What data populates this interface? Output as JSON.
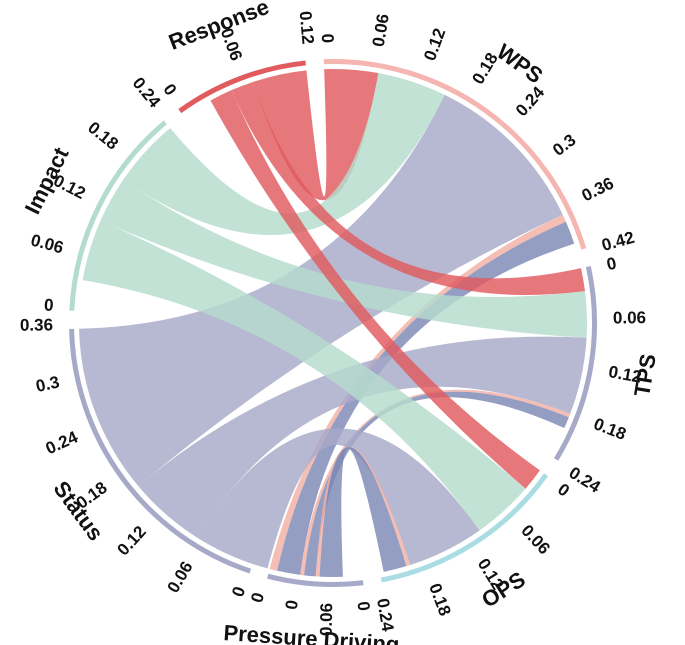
{
  "chart_data": {
    "type": "chord",
    "title": "",
    "colors": {
      "red": "#e05a5e",
      "green": "#b4dccd",
      "purple": "#a7a9c9",
      "salmon": "#f2b0a5",
      "navy": "#7c87b5",
      "track_pink": "#f5b5b0",
      "track_purple": "#a7a9c9",
      "track_cyan": "#a9dde3",
      "track_green": "#b4dccd",
      "track_red": "#e05a5e"
    },
    "sectors": [
      {
        "name": "WPS",
        "total": 0.43,
        "track": "track_pink",
        "ticks": [
          "0",
          "0.06",
          "0.12",
          "0.18",
          "0.24",
          "0.3",
          "0.36",
          "0.42"
        ]
      },
      {
        "name": "TPS",
        "total": 0.25,
        "track": "track_purple",
        "ticks": [
          "0",
          "0.06",
          "0.12",
          "0.18",
          "0.24"
        ]
      },
      {
        "name": "OPS",
        "total": 0.25,
        "track": "track_cyan",
        "ticks": [
          "0",
          "0.06",
          "0.12",
          "0.18",
          "0.24"
        ]
      },
      {
        "name": "Pressure Driving",
        "total": 0.12,
        "track": "track_purple",
        "ticks": [
          "0",
          "0.06",
          "0",
          "0"
        ]
      },
      {
        "name": "Status",
        "total": 0.4,
        "track": "track_purple",
        "ticks": [
          "0",
          "0.06",
          "0.12",
          "0.18",
          "0.24",
          "0.3",
          "0.36"
        ]
      },
      {
        "name": "Impact",
        "total": 0.27,
        "track": "track_green",
        "ticks": [
          "0",
          "0.06",
          "0.12",
          "0.18",
          "0.24"
        ]
      },
      {
        "name": "Response",
        "total": 0.17,
        "track": "track_red",
        "ticks": [
          "0",
          "0.06",
          "0.12"
        ]
      }
    ],
    "links": [
      {
        "from": "WPS",
        "to": "Response",
        "value": 0.07,
        "color": "red"
      },
      {
        "from": "WPS",
        "to": "Impact",
        "value": 0.09,
        "color": "green"
      },
      {
        "from": "WPS",
        "to": "Status",
        "value": 0.22,
        "color": "purple"
      },
      {
        "from": "WPS",
        "to": "Pressure Driving",
        "value": 0.01,
        "color": "salmon"
      },
      {
        "from": "WPS",
        "to": "Pressure Driving",
        "value": 0.03,
        "color": "navy"
      },
      {
        "from": "TPS",
        "to": "Response",
        "value": 0.03,
        "color": "red"
      },
      {
        "from": "TPS",
        "to": "Impact",
        "value": 0.06,
        "color": "green"
      },
      {
        "from": "TPS",
        "to": "Status",
        "value": 0.1,
        "color": "purple"
      },
      {
        "from": "TPS",
        "to": "Pressure Driving",
        "value": 0.005,
        "color": "salmon"
      },
      {
        "from": "TPS",
        "to": "Pressure Driving",
        "value": 0.015,
        "color": "navy"
      },
      {
        "from": "OPS",
        "to": "Response",
        "value": 0.03,
        "color": "red"
      },
      {
        "from": "OPS",
        "to": "Impact",
        "value": 0.08,
        "color": "green"
      },
      {
        "from": "OPS",
        "to": "Status",
        "value": 0.1,
        "color": "purple"
      },
      {
        "from": "OPS",
        "to": "Pressure Driving",
        "value": 0.005,
        "color": "salmon"
      },
      {
        "from": "OPS",
        "to": "Pressure Driving",
        "value": 0.03,
        "color": "navy"
      }
    ]
  }
}
